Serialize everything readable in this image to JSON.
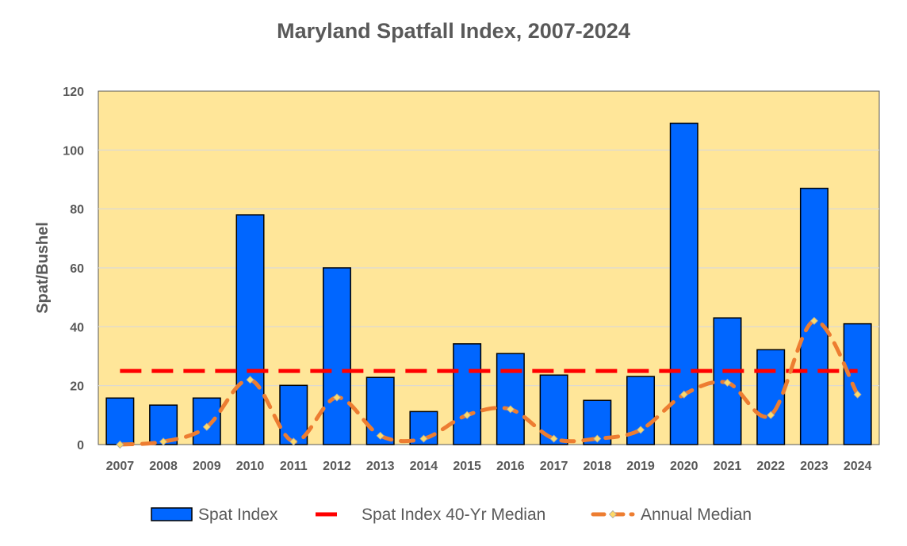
{
  "chart_data": {
    "type": "bar",
    "title": "Maryland Spatfall Index, 2007-2024",
    "xlabel": "",
    "ylabel": "Spat/Bushel",
    "ylim": [
      0,
      120
    ],
    "yticks": [
      0,
      20,
      40,
      60,
      80,
      100,
      120
    ],
    "grid": true,
    "legend_position": "bottom",
    "plot_background": "#FFE699",
    "categories": [
      "2007",
      "2008",
      "2009",
      "2010",
      "2011",
      "2012",
      "2013",
      "2014",
      "2015",
      "2016",
      "2017",
      "2018",
      "2019",
      "2020",
      "2021",
      "2022",
      "2023",
      "2024"
    ],
    "series": [
      {
        "name": "Spat Index",
        "type": "bar",
        "color": "#0066FF",
        "values": [
          15.8,
          13.4,
          15.8,
          78,
          20.1,
          60,
          22.8,
          11.2,
          34.2,
          30.9,
          23.6,
          15,
          23.1,
          109.1,
          43,
          32.2,
          87,
          41
        ]
      },
      {
        "name": "Spat Index 40-Yr Median",
        "type": "line",
        "style": "dashed",
        "color": "#FF0000",
        "values": [
          25,
          25,
          25,
          25,
          25,
          25,
          25,
          25,
          25,
          25,
          25,
          25,
          25,
          25,
          25,
          25,
          25,
          25
        ]
      },
      {
        "name": "Annual Median",
        "type": "line",
        "style": "dashed-smooth-with-diamond-markers",
        "color": "#ED7D31",
        "marker_color": "#FFD966",
        "values": [
          0,
          1,
          6,
          22,
          1,
          16,
          3,
          2,
          10,
          12,
          2,
          2,
          5,
          17,
          21,
          10,
          42,
          17
        ]
      }
    ]
  }
}
